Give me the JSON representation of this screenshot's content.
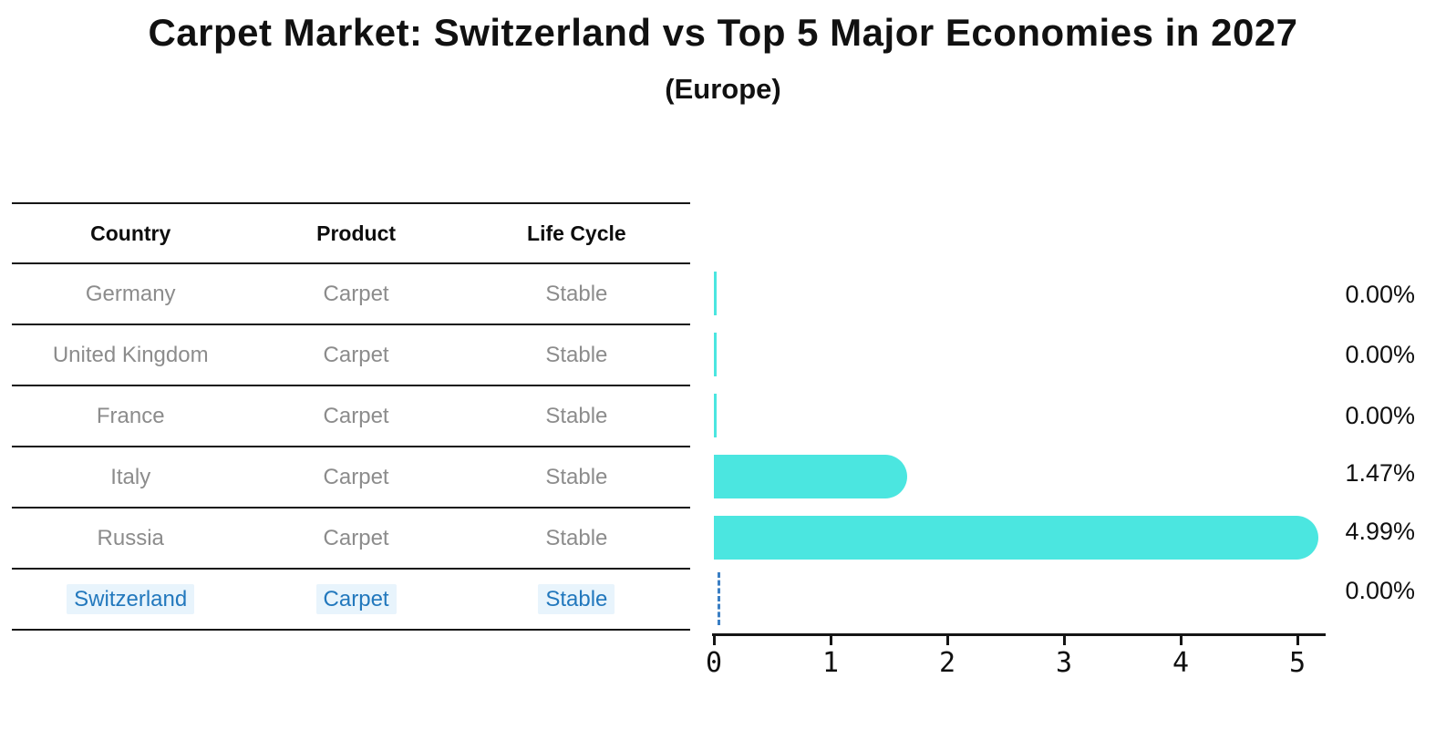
{
  "header": {
    "title": "Carpet Market: Switzerland vs Top 5 Major Economies in 2027",
    "subtitle": "(Europe)"
  },
  "table": {
    "columns": [
      "Country",
      "Product",
      "Life Cycle"
    ],
    "rows": [
      {
        "country": "Germany",
        "product": "Carpet",
        "life_cycle": "Stable",
        "highlight": false
      },
      {
        "country": "United Kingdom",
        "product": "Carpet",
        "life_cycle": "Stable",
        "highlight": false
      },
      {
        "country": "France",
        "product": "Carpet",
        "life_cycle": "Stable",
        "highlight": false
      },
      {
        "country": "Italy",
        "product": "Carpet",
        "life_cycle": "Stable",
        "highlight": false
      },
      {
        "country": "Russia",
        "product": "Carpet",
        "life_cycle": "Stable",
        "highlight": false
      },
      {
        "country": "Switzerland",
        "product": "Carpet",
        "life_cycle": "Stable",
        "highlight": true
      }
    ]
  },
  "chart_data": {
    "type": "bar",
    "orientation": "horizontal",
    "title": "Carpet Market: Switzerland vs Top 5 Major Economies in 2027",
    "subtitle": "(Europe)",
    "categories": [
      "Germany",
      "United Kingdom",
      "France",
      "Italy",
      "Russia",
      "Switzerland"
    ],
    "values": [
      0.0,
      0.0,
      0.0,
      1.47,
      4.99,
      0.0
    ],
    "value_labels": [
      "0.00%",
      "0.00%",
      "0.00%",
      "1.47%",
      "4.99%",
      "0.00%"
    ],
    "x_ticks": [
      "0",
      "1",
      "2",
      "3",
      "4",
      "5"
    ],
    "xlim": [
      0,
      5.25
    ],
    "grid": false,
    "legend": "none",
    "bar_color": "#4be6e0",
    "switzerland_marker": "dashed-line",
    "marker_color": "#3b7fc4",
    "highlight_text_color": "#2278bd"
  }
}
